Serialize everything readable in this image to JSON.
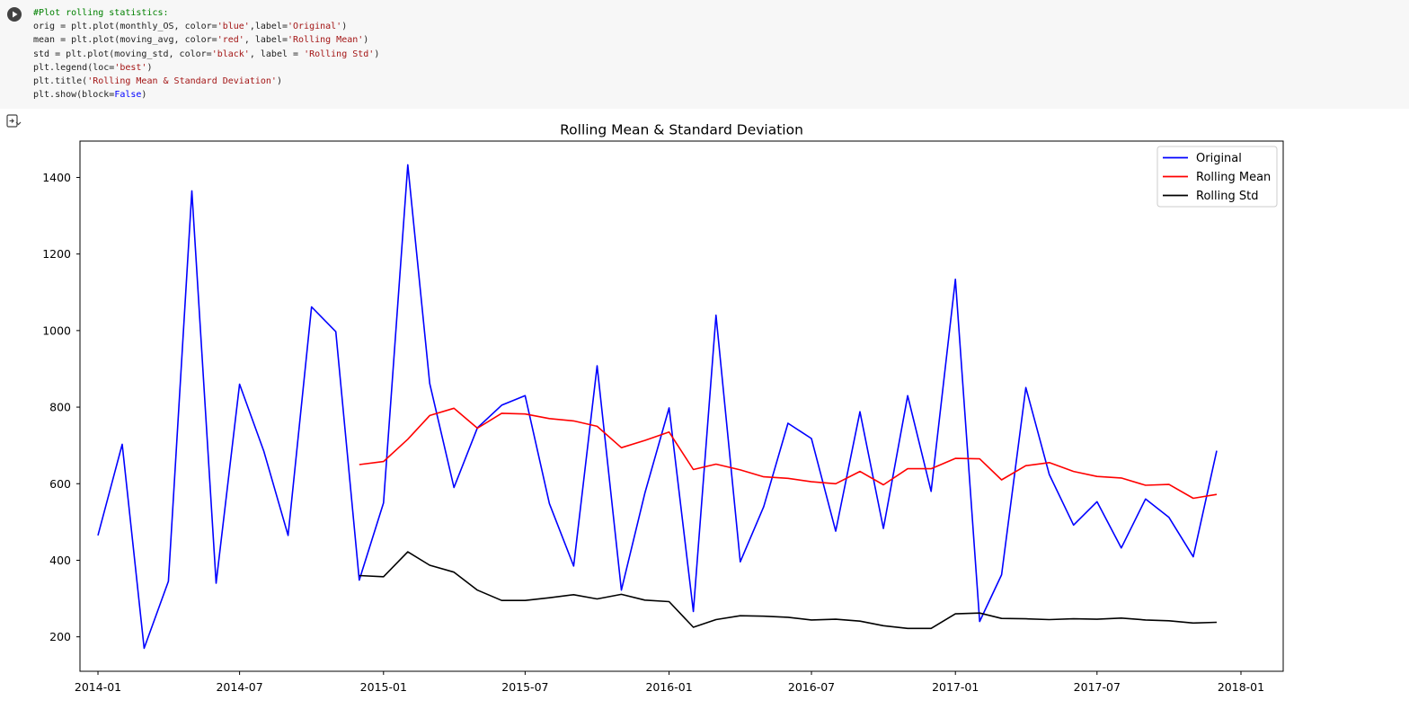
{
  "cell": {
    "run_icon": "play-circle-icon",
    "output_toggle_icon": "output-collapse-icon",
    "code_lines": [
      [
        {
          "t": "#Plot rolling statistics:",
          "c": "cmt"
        }
      ],
      [
        {
          "t": "orig = plt.plot(monthly_OS, color=",
          "c": ""
        },
        {
          "t": "'blue'",
          "c": "str"
        },
        {
          "t": ",label=",
          "c": ""
        },
        {
          "t": "'Original'",
          "c": "str"
        },
        {
          "t": ")",
          "c": ""
        }
      ],
      [
        {
          "t": "mean = plt.plot(moving_avg, color=",
          "c": ""
        },
        {
          "t": "'red'",
          "c": "str"
        },
        {
          "t": ", label=",
          "c": ""
        },
        {
          "t": "'Rolling Mean'",
          "c": "str"
        },
        {
          "t": ")",
          "c": ""
        }
      ],
      [
        {
          "t": "std = plt.plot(moving_std, color=",
          "c": ""
        },
        {
          "t": "'black'",
          "c": "str"
        },
        {
          "t": ", label = ",
          "c": ""
        },
        {
          "t": "'Rolling Std'",
          "c": "str"
        },
        {
          "t": ")",
          "c": ""
        }
      ],
      [
        {
          "t": "plt.legend(loc=",
          "c": ""
        },
        {
          "t": "'best'",
          "c": "str"
        },
        {
          "t": ")",
          "c": ""
        }
      ],
      [
        {
          "t": "plt.title(",
          "c": ""
        },
        {
          "t": "'Rolling Mean & Standard Deviation'",
          "c": "str"
        },
        {
          "t": ")",
          "c": ""
        }
      ],
      [
        {
          "t": "plt.show(block=",
          "c": ""
        },
        {
          "t": "False",
          "c": "kw"
        },
        {
          "t": ")",
          "c": ""
        }
      ]
    ]
  },
  "chart_data": {
    "type": "line",
    "title": "Rolling Mean & Standard Deviation",
    "xlabel": "",
    "ylabel": "",
    "x_ticks": [
      "2014-01",
      "2014-07",
      "2015-01",
      "2015-07",
      "2016-01",
      "2016-07",
      "2017-01",
      "2017-07",
      "2018-01"
    ],
    "y_ticks": [
      200,
      400,
      600,
      800,
      1000,
      1200,
      1400
    ],
    "ylim": [
      110,
      1495
    ],
    "xlim": [
      "2013-12-09",
      "2018-02-24"
    ],
    "grid": false,
    "legend_position": "top-right",
    "x": [
      "2014-01-01",
      "2014-02-01",
      "2014-03-01",
      "2014-04-01",
      "2014-05-01",
      "2014-06-01",
      "2014-07-01",
      "2014-08-01",
      "2014-09-01",
      "2014-10-01",
      "2014-11-01",
      "2014-12-01",
      "2015-01-01",
      "2015-02-01",
      "2015-03-01",
      "2015-04-01",
      "2015-05-01",
      "2015-06-01",
      "2015-07-01",
      "2015-08-01",
      "2015-09-01",
      "2015-10-01",
      "2015-11-01",
      "2015-12-01",
      "2016-01-01",
      "2016-02-01",
      "2016-03-01",
      "2016-04-01",
      "2016-05-01",
      "2016-06-01",
      "2016-07-01",
      "2016-08-01",
      "2016-09-01",
      "2016-10-01",
      "2016-11-01",
      "2016-12-01",
      "2017-01-01",
      "2017-02-01",
      "2017-03-01",
      "2017-04-01",
      "2017-05-01",
      "2017-06-01",
      "2017-07-01",
      "2017-08-01",
      "2017-09-01",
      "2017-10-01",
      "2017-11-01",
      "2017-12-01"
    ],
    "series": [
      {
        "name": "Original",
        "color": "#0000ff",
        "values": [
          465,
          703,
          170,
          345,
          1365,
          340,
          860,
          685,
          465,
          1062,
          997,
          348,
          550,
          1433,
          862,
          590,
          746,
          805,
          830,
          548,
          385,
          908,
          322,
          575,
          798,
          266,
          1040,
          396,
          540,
          758,
          718,
          476,
          788,
          483,
          830,
          580,
          1134,
          240,
          362,
          851,
          624,
          492,
          553,
          432,
          560,
          512,
          409,
          686
        ]
      },
      {
        "name": "Rolling Mean",
        "color": "#ff0000",
        "values": [
          null,
          null,
          null,
          null,
          null,
          null,
          null,
          null,
          null,
          null,
          null,
          650,
          658,
          716,
          778,
          797,
          745,
          784,
          782,
          770,
          764,
          750,
          694,
          713,
          735,
          637,
          651,
          636,
          618,
          614,
          605,
          600,
          632,
          597,
          639,
          639,
          666,
          665,
          610,
          647,
          655,
          632,
          619,
          615,
          596,
          598,
          562,
          572
        ]
      },
      {
        "name": "Rolling Std",
        "color": "#000000",
        "values": [
          null,
          null,
          null,
          null,
          null,
          null,
          null,
          null,
          null,
          null,
          null,
          360,
          357,
          422,
          387,
          369,
          322,
          295,
          295,
          302,
          310,
          299,
          311,
          296,
          292,
          225,
          245,
          255,
          254,
          251,
          244,
          246,
          241,
          229,
          222,
          222,
          260,
          262,
          248,
          247,
          245,
          247,
          246,
          249,
          244,
          242,
          236,
          238
        ]
      }
    ]
  }
}
